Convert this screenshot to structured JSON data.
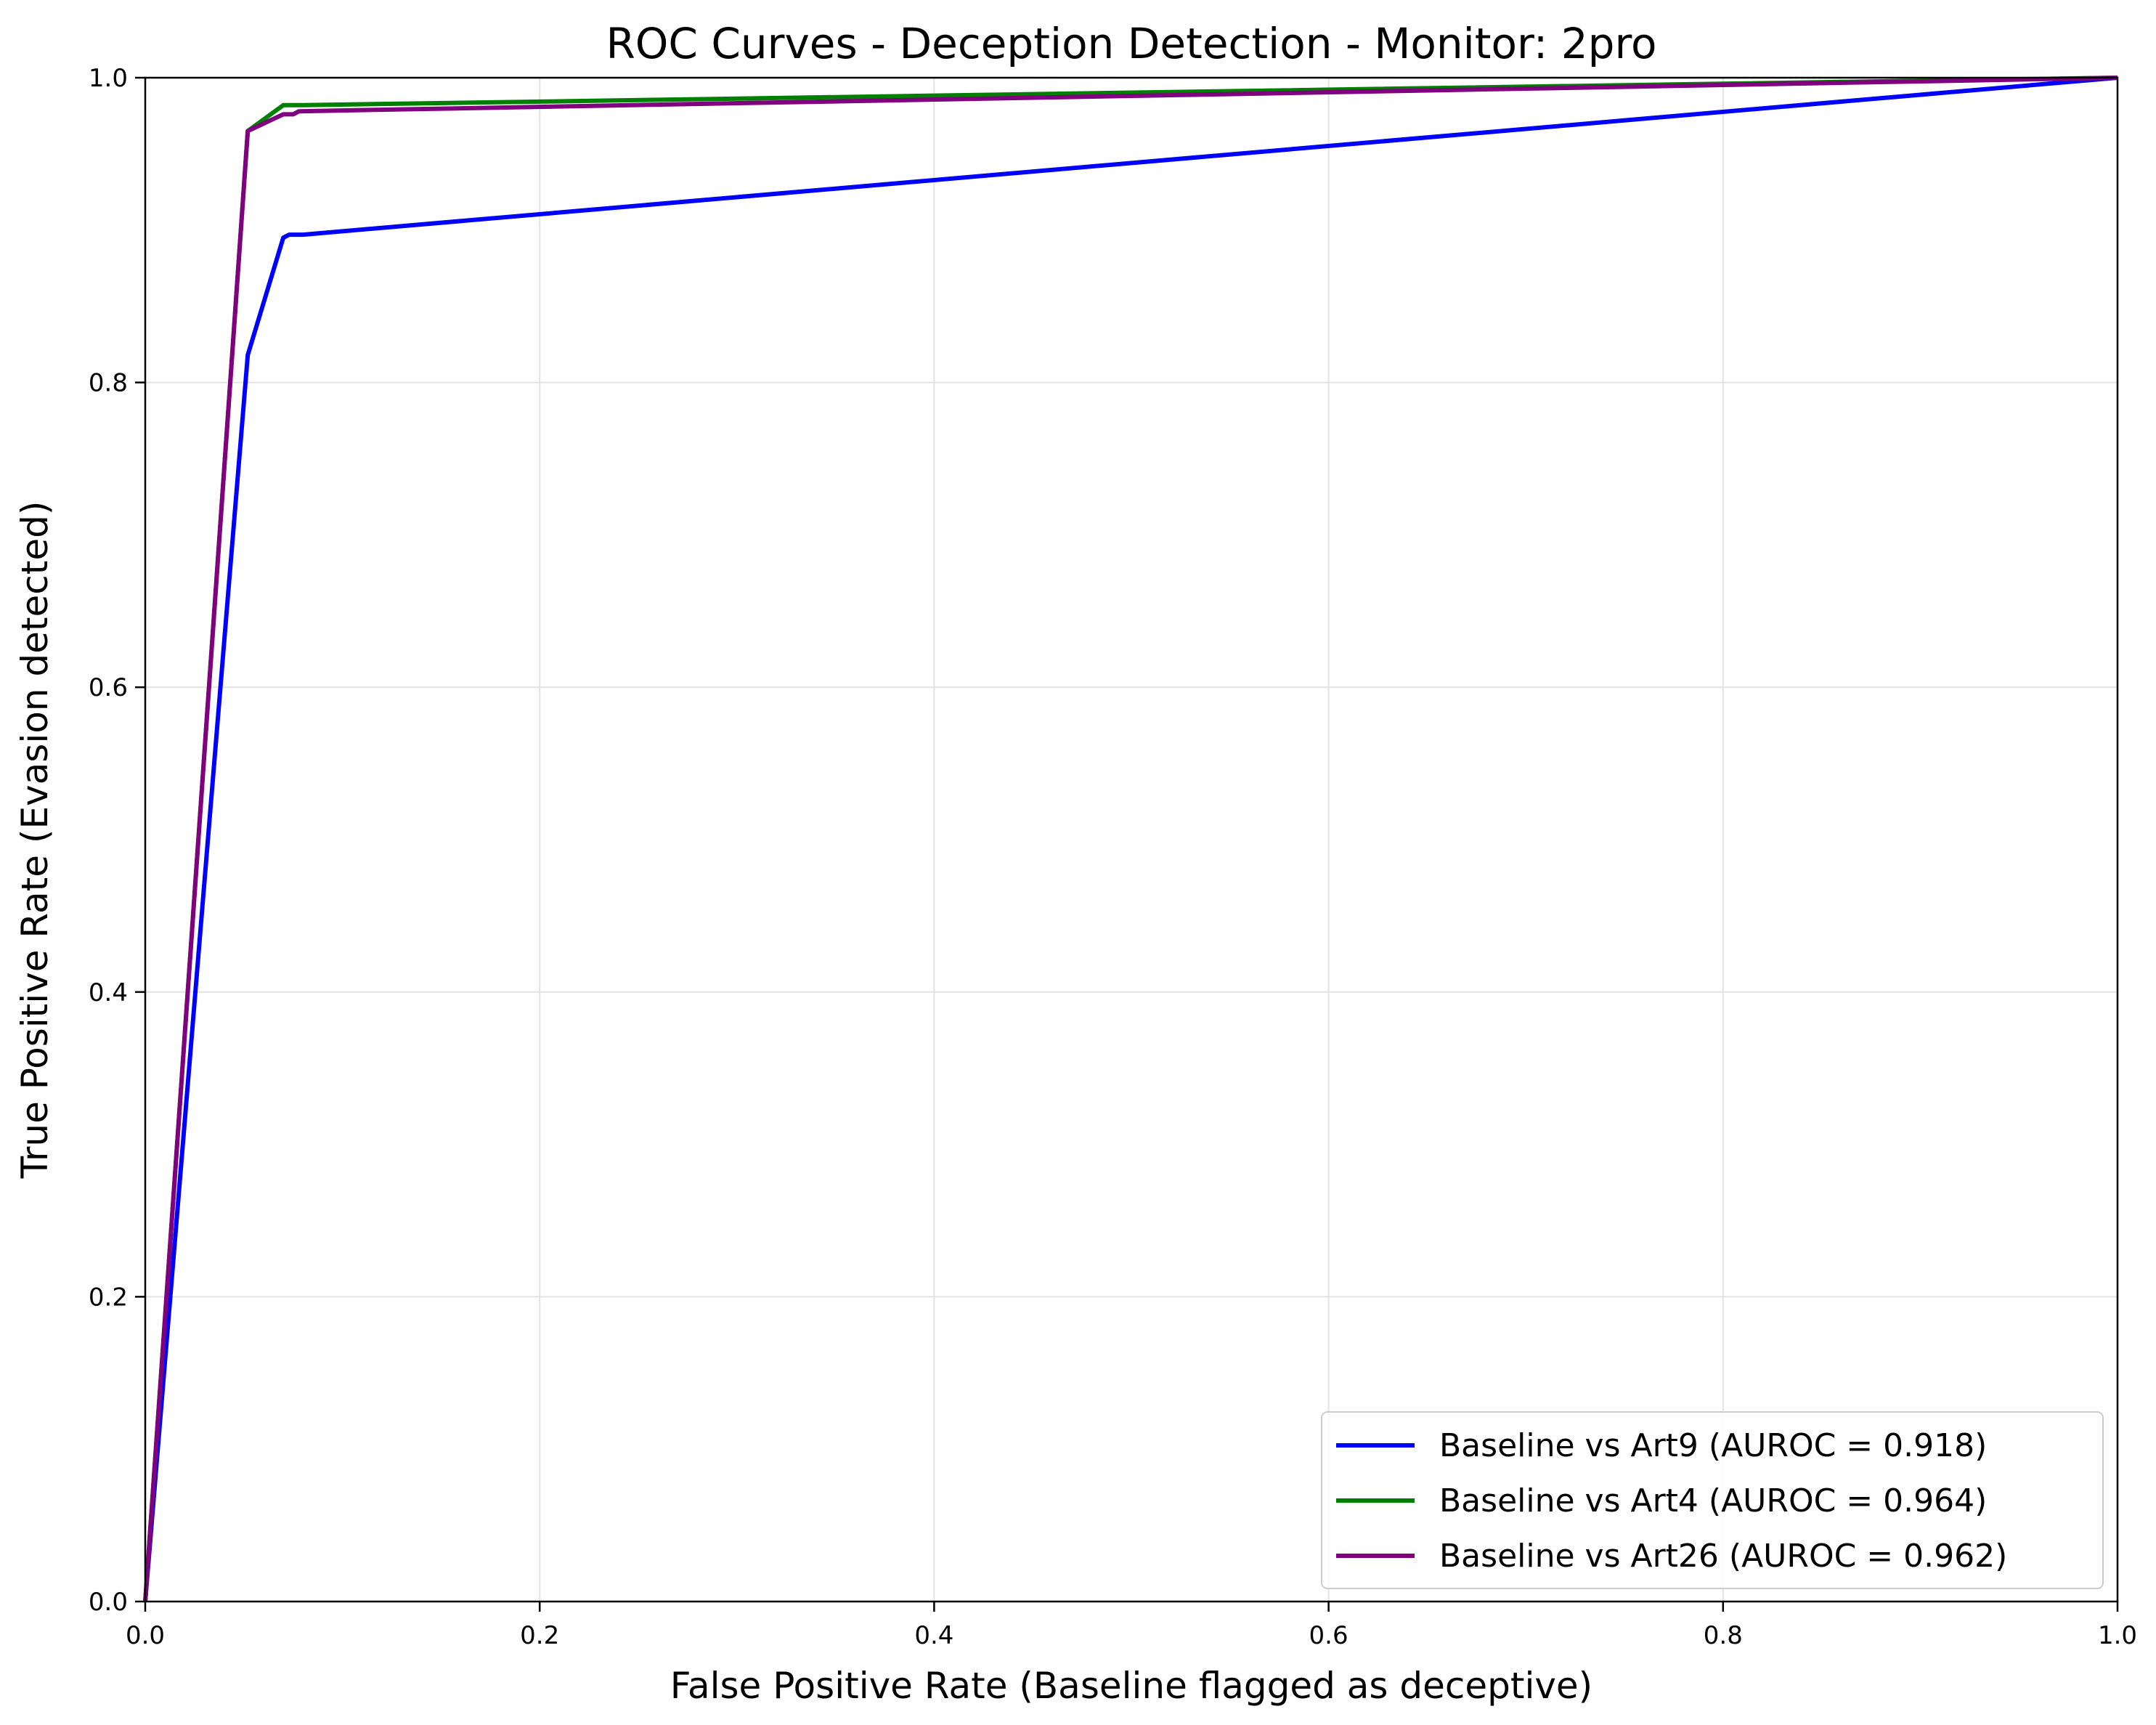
{
  "chart_data": {
    "type": "line",
    "title": "ROC Curves - Deception Detection - Monitor: 2pro",
    "xlabel": "False Positive Rate (Baseline flagged as deceptive)",
    "ylabel": "True Positive Rate (Evasion detected)",
    "xlim": [
      0.0,
      1.0
    ],
    "ylim": [
      0.0,
      1.0
    ],
    "x_ticks": [
      "0.0",
      "0.2",
      "0.4",
      "0.6",
      "0.8",
      "1.0"
    ],
    "y_ticks": [
      "0.0",
      "0.2",
      "0.4",
      "0.6",
      "0.8",
      "1.0"
    ],
    "grid": true,
    "legend_position": "lower-right",
    "series": [
      {
        "name": "Baseline vs Art9 (AUROC = 0.918)",
        "color": "#0000ff",
        "x": [
          0.0,
          0.052,
          0.07,
          0.073,
          0.08,
          1.0
        ],
        "y": [
          0.0,
          0.818,
          0.895,
          0.897,
          0.897,
          1.0
        ]
      },
      {
        "name": "Baseline vs Art4 (AUROC = 0.964)",
        "color": "#008000",
        "x": [
          0.0,
          0.052,
          0.07,
          0.08,
          1.0
        ],
        "y": [
          0.0,
          0.965,
          0.982,
          0.982,
          1.0
        ]
      },
      {
        "name": "Baseline vs Art26 (AUROC = 0.962)",
        "color": "#800080",
        "x": [
          0.0,
          0.052,
          0.07,
          0.075,
          0.078,
          1.0
        ],
        "y": [
          0.0,
          0.965,
          0.976,
          0.976,
          0.978,
          1.0
        ]
      }
    ]
  }
}
